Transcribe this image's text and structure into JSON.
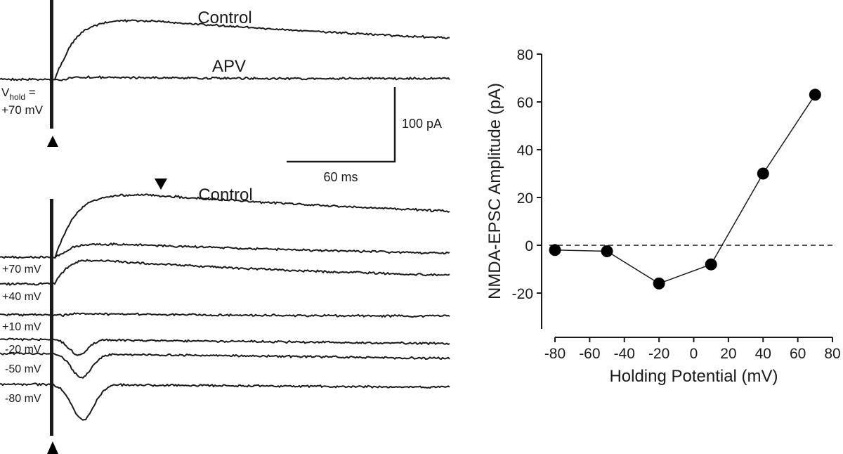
{
  "panel_a": {
    "labels": {
      "control": "Control",
      "apv": "APV",
      "vhold_prefix": "V",
      "vhold_sub": "hold",
      "vhold_eq": " =",
      "vhold_value": "+70 mV"
    },
    "scale_bar": {
      "y_label": "100 pA",
      "x_label": "60 ms"
    }
  },
  "panel_b": {
    "control_label": "Control",
    "potential_labels": [
      "+70 mV",
      "+40 mV",
      "+10 mV",
      "-20 mV",
      "-50 mV",
      "-80 mV"
    ]
  },
  "chart_data": {
    "type": "line",
    "xlabel": "Holding Potential (mV)",
    "ylabel": "NMDA-EPSC Amplitude (pA)",
    "xlim": [
      -80,
      80
    ],
    "ylim": [
      -35,
      80
    ],
    "xticks": [
      -80,
      -60,
      -40,
      -20,
      0,
      20,
      40,
      60,
      80
    ],
    "yticks": [
      -20,
      0,
      20,
      40,
      60,
      80
    ],
    "x": [
      -80,
      -50,
      -20,
      10,
      40,
      70
    ],
    "series": [
      {
        "values": [
          -2,
          -2.5,
          -16,
          -8,
          30,
          63
        ]
      }
    ],
    "reference_line_y": 0,
    "grid": false,
    "colors": {
      "line": "#1a1a1a",
      "marker": "#000000"
    }
  }
}
